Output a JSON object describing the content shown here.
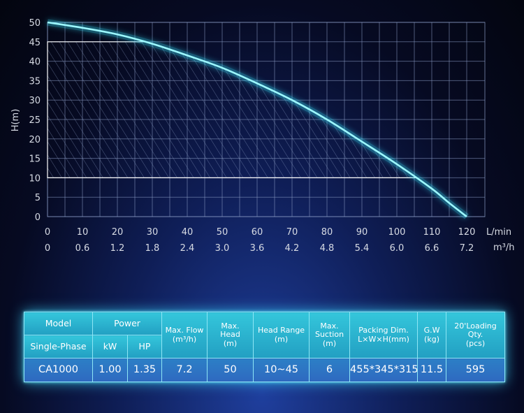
{
  "chart_data": {
    "type": "line",
    "ylabel": "H(m)",
    "x_unit": "L/min",
    "x2_unit": "m³/h",
    "xlim": [
      0,
      120
    ],
    "ylim": [
      0,
      50
    ],
    "x_ticks": [
      "0",
      "10",
      "20",
      "30",
      "40",
      "50",
      "60",
      "70",
      "80",
      "90",
      "100",
      "110",
      "120"
    ],
    "x2_ticks": [
      "0",
      "0.6",
      "1.2",
      "1.8",
      "2.4",
      "3.0",
      "3.6",
      "4.2",
      "4.8",
      "5.4",
      "6.0",
      "6.6",
      "7.2"
    ],
    "y_ticks": [
      "0",
      "5",
      "10",
      "15",
      "20",
      "25",
      "30",
      "35",
      "40",
      "45",
      "50"
    ],
    "grid": true,
    "series": [
      {
        "x": [
          0,
          10,
          20,
          30,
          40,
          50,
          60,
          70,
          80,
          90,
          100,
          110,
          115,
          120
        ],
        "y": [
          50,
          48.6,
          46.9,
          44.5,
          41.5,
          38.3,
          34.3,
          30.0,
          25.0,
          19.3,
          13.5,
          7.2,
          3.5,
          0
        ]
      }
    ],
    "shaded_range": {
      "y": [
        10,
        45
      ]
    },
    "colors": {
      "curve": "#8ff6ff",
      "grid": "#8a9bc4",
      "hatch": "#8da0c8"
    }
  },
  "table": {
    "headers": {
      "model": "Model",
      "power": "Power",
      "single_phase": "Single-Phase",
      "kw": "kW",
      "hp": "HP",
      "max_flow": [
        "Max. Flow",
        "(m³/h)"
      ],
      "max_head": [
        "Max.",
        "Head",
        "(m)"
      ],
      "head_range": [
        "Head Range",
        "(m)"
      ],
      "max_suction": [
        "Max.",
        "Suction",
        "(m)"
      ],
      "packing": [
        "Packing Dim.",
        "L×W×H(mm)"
      ],
      "gw": [
        "G.W",
        "(kg)"
      ],
      "loading": [
        "20'Loading",
        "Qty.",
        "(pcs)"
      ]
    },
    "row": {
      "model": "CA1000",
      "kw": "1.00",
      "hp": "1.35",
      "max_flow": "7.2",
      "max_head": "50",
      "head_range": "10~45",
      "max_suction": "6",
      "packing": "455*345*315",
      "gw": "11.5",
      "loading": "595"
    }
  }
}
